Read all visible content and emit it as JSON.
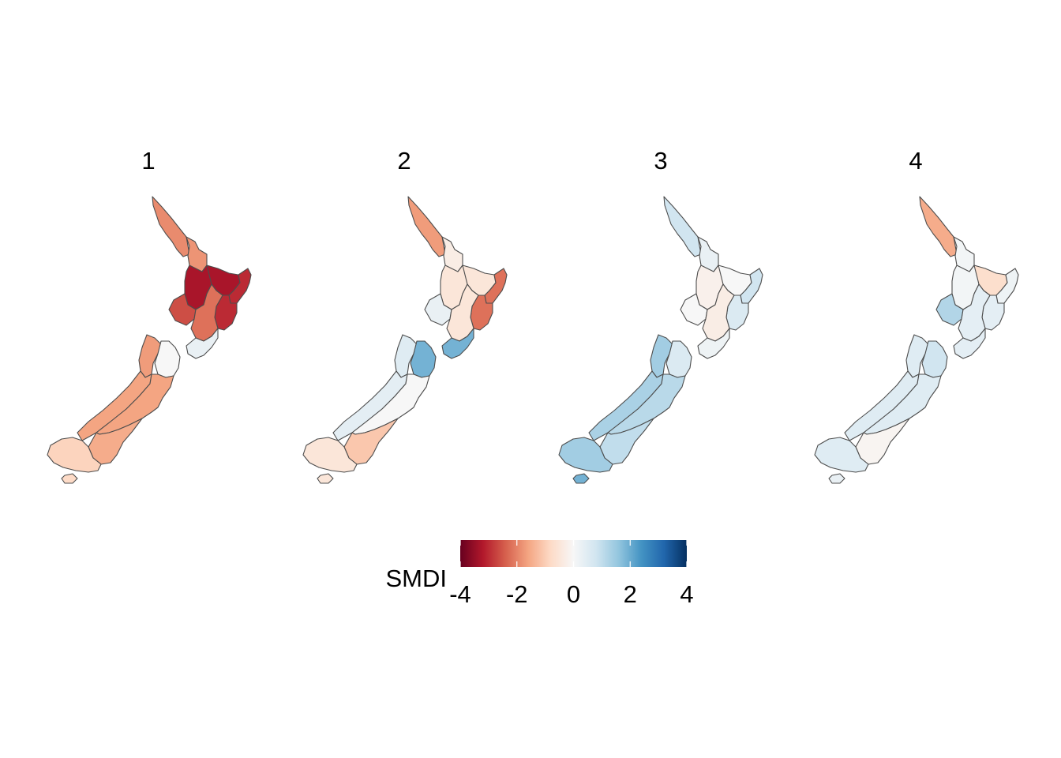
{
  "legend": {
    "title": "SMDI",
    "ticks": [
      "-4",
      "-2",
      "0",
      "2",
      "4"
    ],
    "range": [
      -4,
      4
    ],
    "palette": [
      "#67001f",
      "#b2182b",
      "#d6604d",
      "#f4a582",
      "#fddbc7",
      "#f7f7f7",
      "#d1e5f0",
      "#92c5de",
      "#4393c3",
      "#2166ac",
      "#053061"
    ]
  },
  "panels": [
    {
      "title": "1",
      "regions": {
        "northland": -1.9,
        "auckland": -1.8,
        "waikato": -3.3,
        "bay_of_plenty": -3.3,
        "gisborne": -3.0,
        "hawkes_bay": -3.0,
        "taranaki": -2.6,
        "manawatu": -2.2,
        "wellington": 0.3,
        "tasman": -1.7,
        "marlborough": 0.0,
        "west_coast": -1.6,
        "canterbury": -1.6,
        "otago": -1.5,
        "southland": -0.9,
        "stewart": -0.8
      }
    },
    {
      "title": "2",
      "regions": {
        "northland": -1.7,
        "auckland": -0.3,
        "waikato": -0.5,
        "bay_of_plenty": -0.5,
        "gisborne": -2.2,
        "hawkes_bay": -2.2,
        "taranaki": 0.3,
        "manawatu": -0.5,
        "wellington": 1.9,
        "tasman": 0.5,
        "marlborough": 1.9,
        "west_coast": 0.4,
        "canterbury": 0.0,
        "otago": -1.1,
        "southland": -0.5,
        "stewart": -0.5
      }
    },
    {
      "title": "3",
      "regions": {
        "northland": 0.8,
        "auckland": 0.3,
        "waikato": -0.2,
        "bay_of_plenty": 0.0,
        "gisborne": 0.8,
        "hawkes_bay": 0.6,
        "taranaki": 0.0,
        "manawatu": -0.3,
        "wellington": 0.2,
        "tasman": 1.4,
        "marlborough": 0.6,
        "west_coast": 1.3,
        "canterbury": 1.1,
        "otago": 1.0,
        "southland": 1.4,
        "stewart": 1.9
      }
    },
    {
      "title": "4",
      "regions": {
        "northland": -1.5,
        "auckland": 0.1,
        "waikato": 0.1,
        "bay_of_plenty": -0.7,
        "gisborne": 0.2,
        "hawkes_bay": 0.4,
        "taranaki": 1.2,
        "manawatu": 0.4,
        "wellington": 0.4,
        "tasman": 0.5,
        "marlborough": 0.8,
        "west_coast": 0.5,
        "canterbury": 0.5,
        "otago": -0.1,
        "southland": 0.5,
        "stewart": 0.3
      }
    }
  ]
}
